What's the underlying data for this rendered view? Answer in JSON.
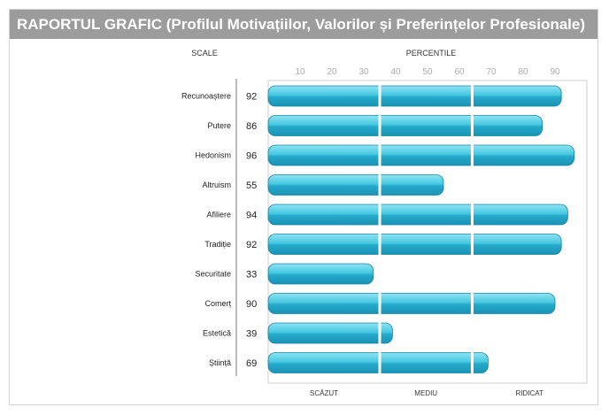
{
  "chart_data": {
    "type": "bar",
    "orientation": "horizontal",
    "title": "RAPORTUL GRAFIC (Profilul Motivațiilor, Valorilor și Preferințelor Profesionale)",
    "scale_header": "SCALE",
    "percentile_header": "PERCENTILE",
    "categories": [
      "Recunoaștere",
      "Putere",
      "Hedonism",
      "Altruism",
      "Afiliere",
      "Tradiție",
      "Securitate",
      "Comerț",
      "Estetică",
      "Știință"
    ],
    "values": [
      92,
      86,
      96,
      55,
      94,
      92,
      33,
      90,
      39,
      69
    ],
    "xticks": [
      10,
      20,
      30,
      40,
      50,
      60,
      70,
      80,
      90
    ],
    "xlim": [
      0,
      100
    ],
    "zones": [
      {
        "label": "SCĂZUT",
        "from": 0,
        "to": 35
      },
      {
        "label": "MEDIU",
        "from": 35,
        "to": 64
      },
      {
        "label": "RIDICAT",
        "from": 64,
        "to": 100
      }
    ],
    "colors": {
      "bar_top": "#8fe3f3",
      "bar_mid": "#38bfdb",
      "bar_bottom": "#1a93b4",
      "divider": "#ffffff",
      "title_bg": "#9c9c9c"
    }
  }
}
